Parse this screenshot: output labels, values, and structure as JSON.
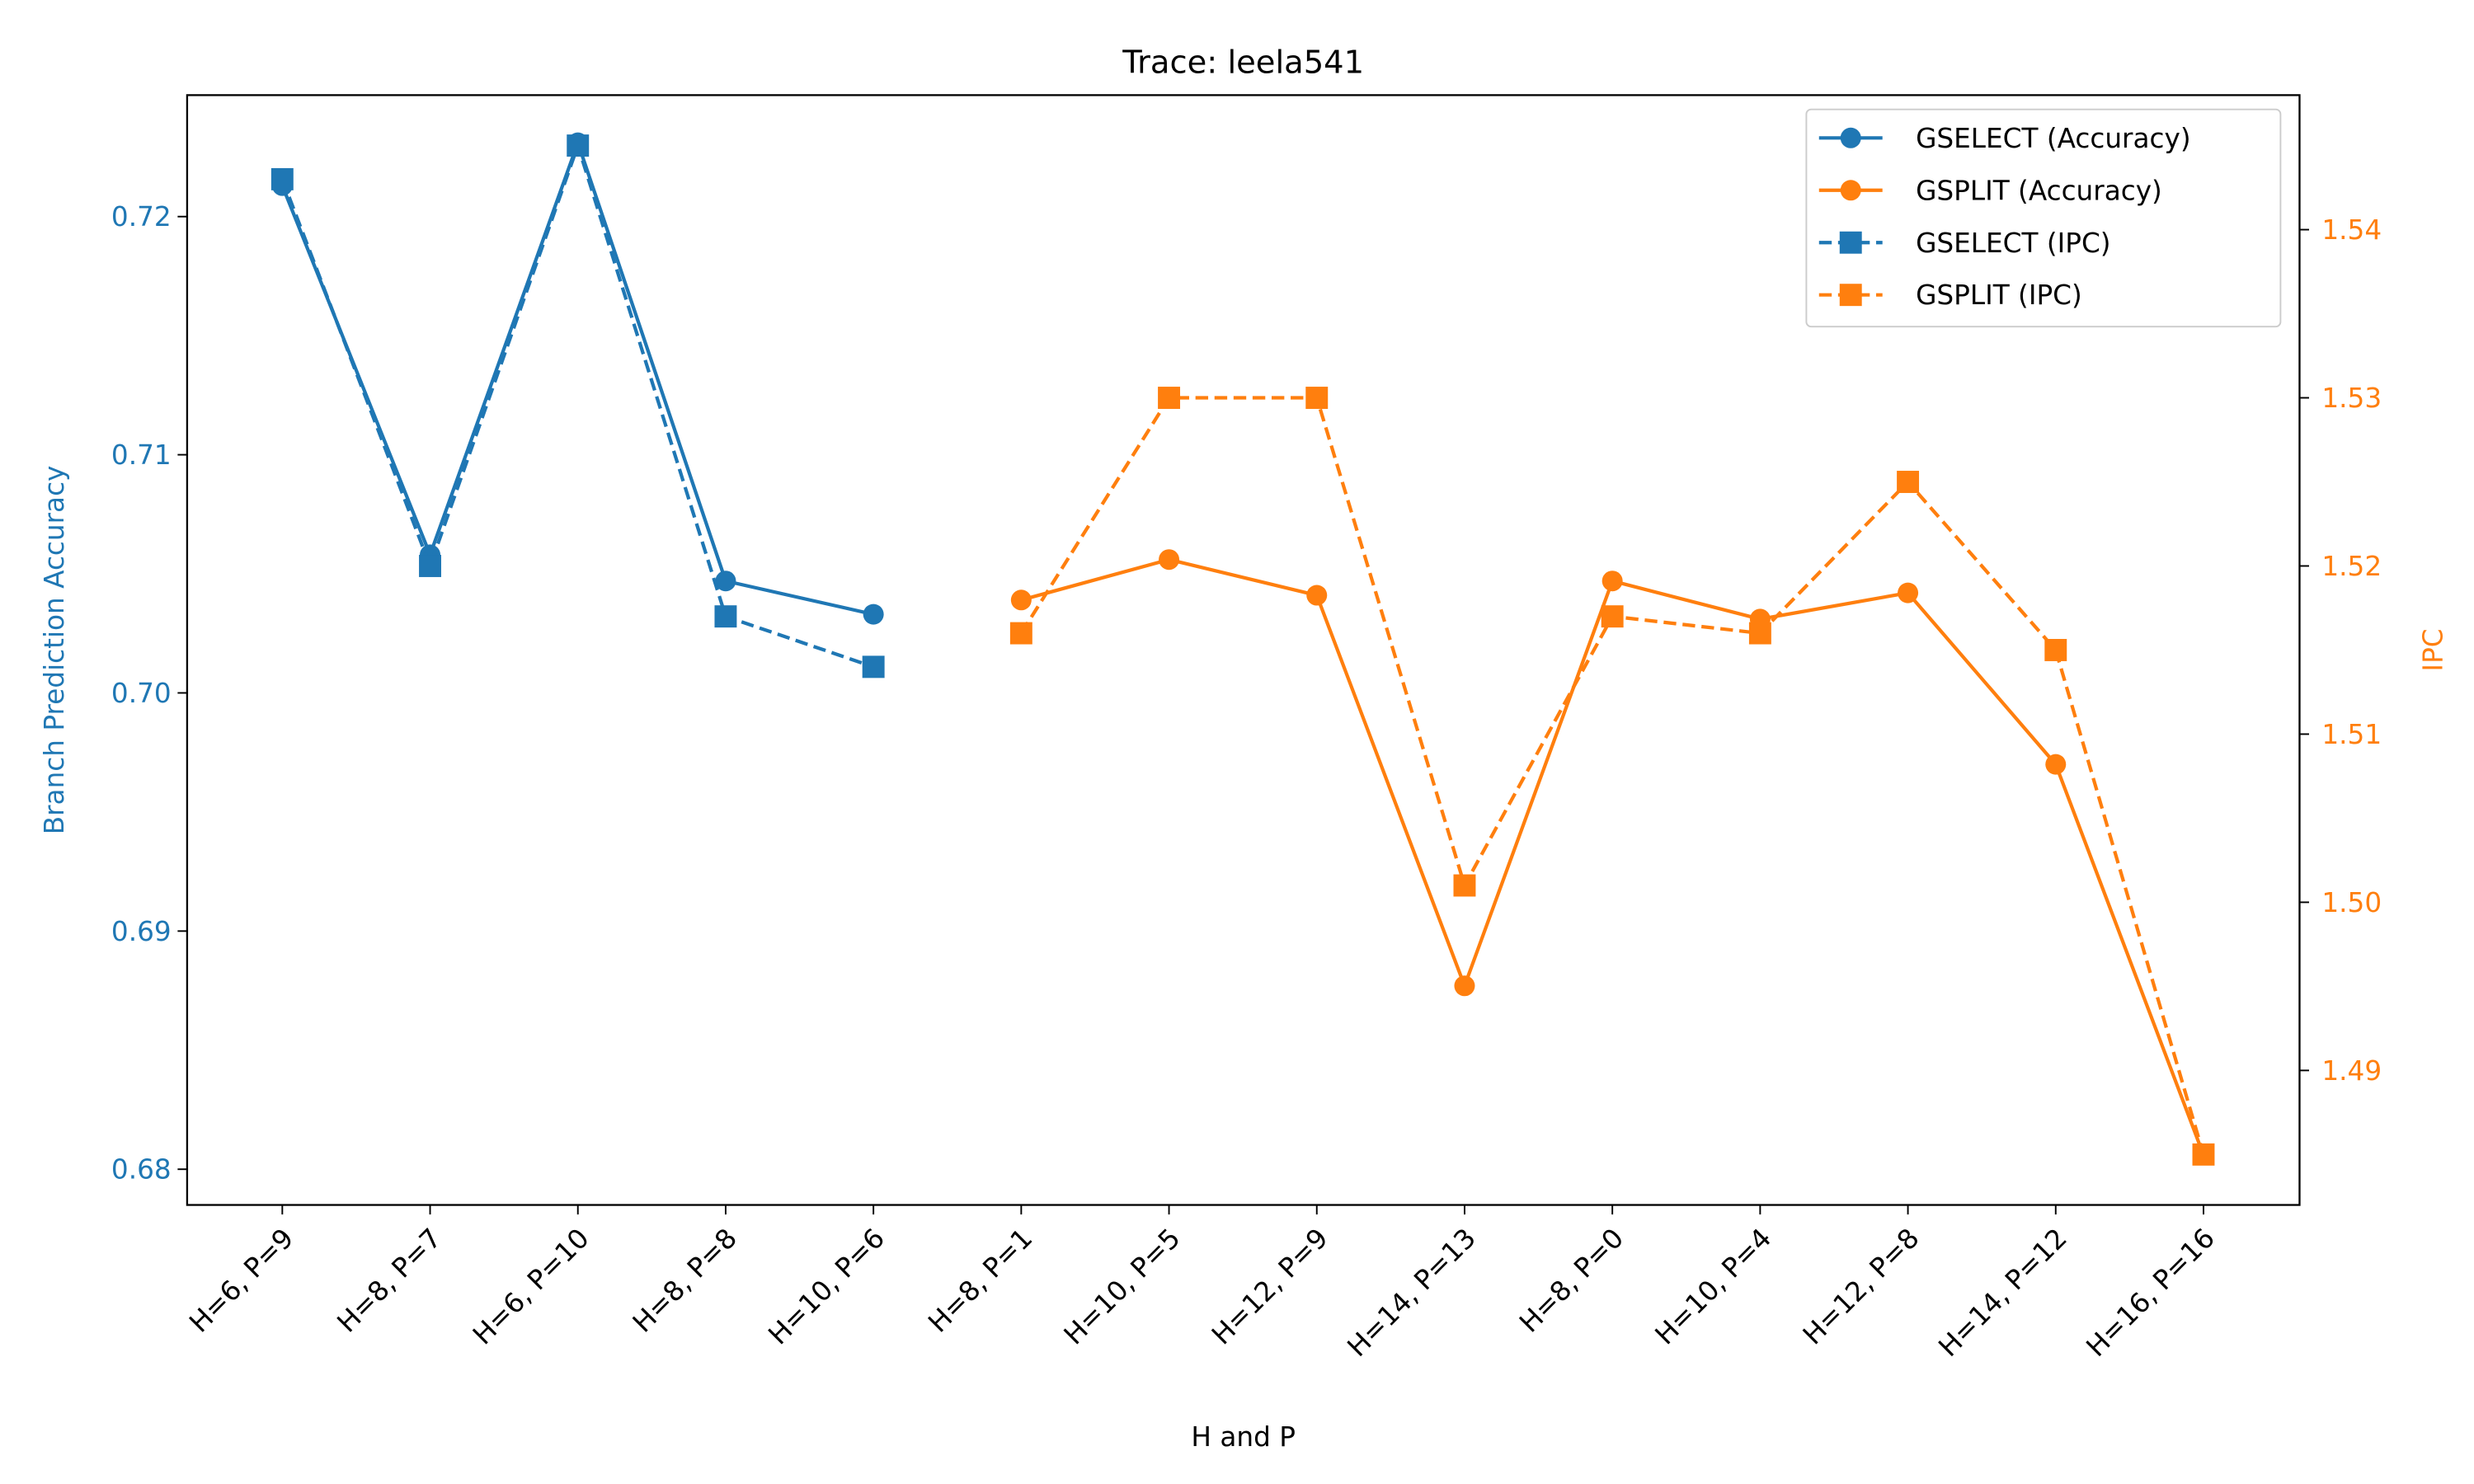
{
  "chart_data": {
    "type": "line",
    "title": "Trace: leela541",
    "xlabel": "H and P",
    "ylabel": "Branch Prediction Accuracy",
    "y2label": "IPC",
    "categories": [
      "H=6, P=9",
      "H=8, P=7",
      "H=6, P=10",
      "H=8, P=8",
      "H=10, P=6",
      "H=8, P=1",
      "H=10, P=5",
      "H=12, P=9",
      "H=14, P=13",
      "H=8, P=0",
      "H=10, P=4",
      "H=12, P=8",
      "H=14, P=12",
      "H=16, P=16"
    ],
    "ylim": [
      0.6785,
      0.7251
    ],
    "yticks": [
      0.68,
      0.69,
      {
        "value": 0.7,
        "label": "0.70"
      },
      0.71,
      0.72
    ],
    "y2lim": [
      1.482,
      1.548
    ],
    "y2ticks": [
      1.49,
      {
        "value": 1.5,
        "label": "1.50"
      },
      1.51,
      1.52,
      1.53,
      1.54
    ],
    "ycolor": "#1f77b4",
    "y2color": "#ff7f0e",
    "legend": "upper right",
    "series": [
      {
        "name": "GSELECT (Accuracy)",
        "color": "#1f77b4",
        "marker": "circle",
        "linestyle": "solid",
        "values": [
          0.7213,
          0.7058,
          0.7231,
          0.7047,
          0.7033,
          null,
          null,
          null,
          null,
          null,
          null,
          null,
          null,
          null
        ]
      },
      {
        "name": "GSPLIT (Accuracy)",
        "color": "#ff7f0e",
        "marker": "circle",
        "linestyle": "solid",
        "values": [
          null,
          null,
          null,
          null,
          null,
          0.7039,
          0.7056,
          0.7041,
          0.6877,
          0.7047,
          0.7031,
          0.7042,
          0.697,
          0.6806
        ]
      },
      {
        "name": "GSELECT (IPC)",
        "color": "#1f77b4",
        "marker": "square",
        "linestyle": "dashed",
        "axis": "y2",
        "values": [
          1.543,
          1.52,
          1.545,
          1.517,
          1.514,
          null,
          null,
          null,
          null,
          null,
          null,
          null,
          null,
          null
        ]
      },
      {
        "name": "GSPLIT (IPC)",
        "color": "#ff7f0e",
        "marker": "square",
        "linestyle": "dashed",
        "axis": "y2",
        "values": [
          null,
          null,
          null,
          null,
          null,
          1.516,
          1.53,
          1.53,
          1.501,
          1.517,
          1.516,
          1.525,
          1.515,
          1.485
        ]
      }
    ]
  }
}
